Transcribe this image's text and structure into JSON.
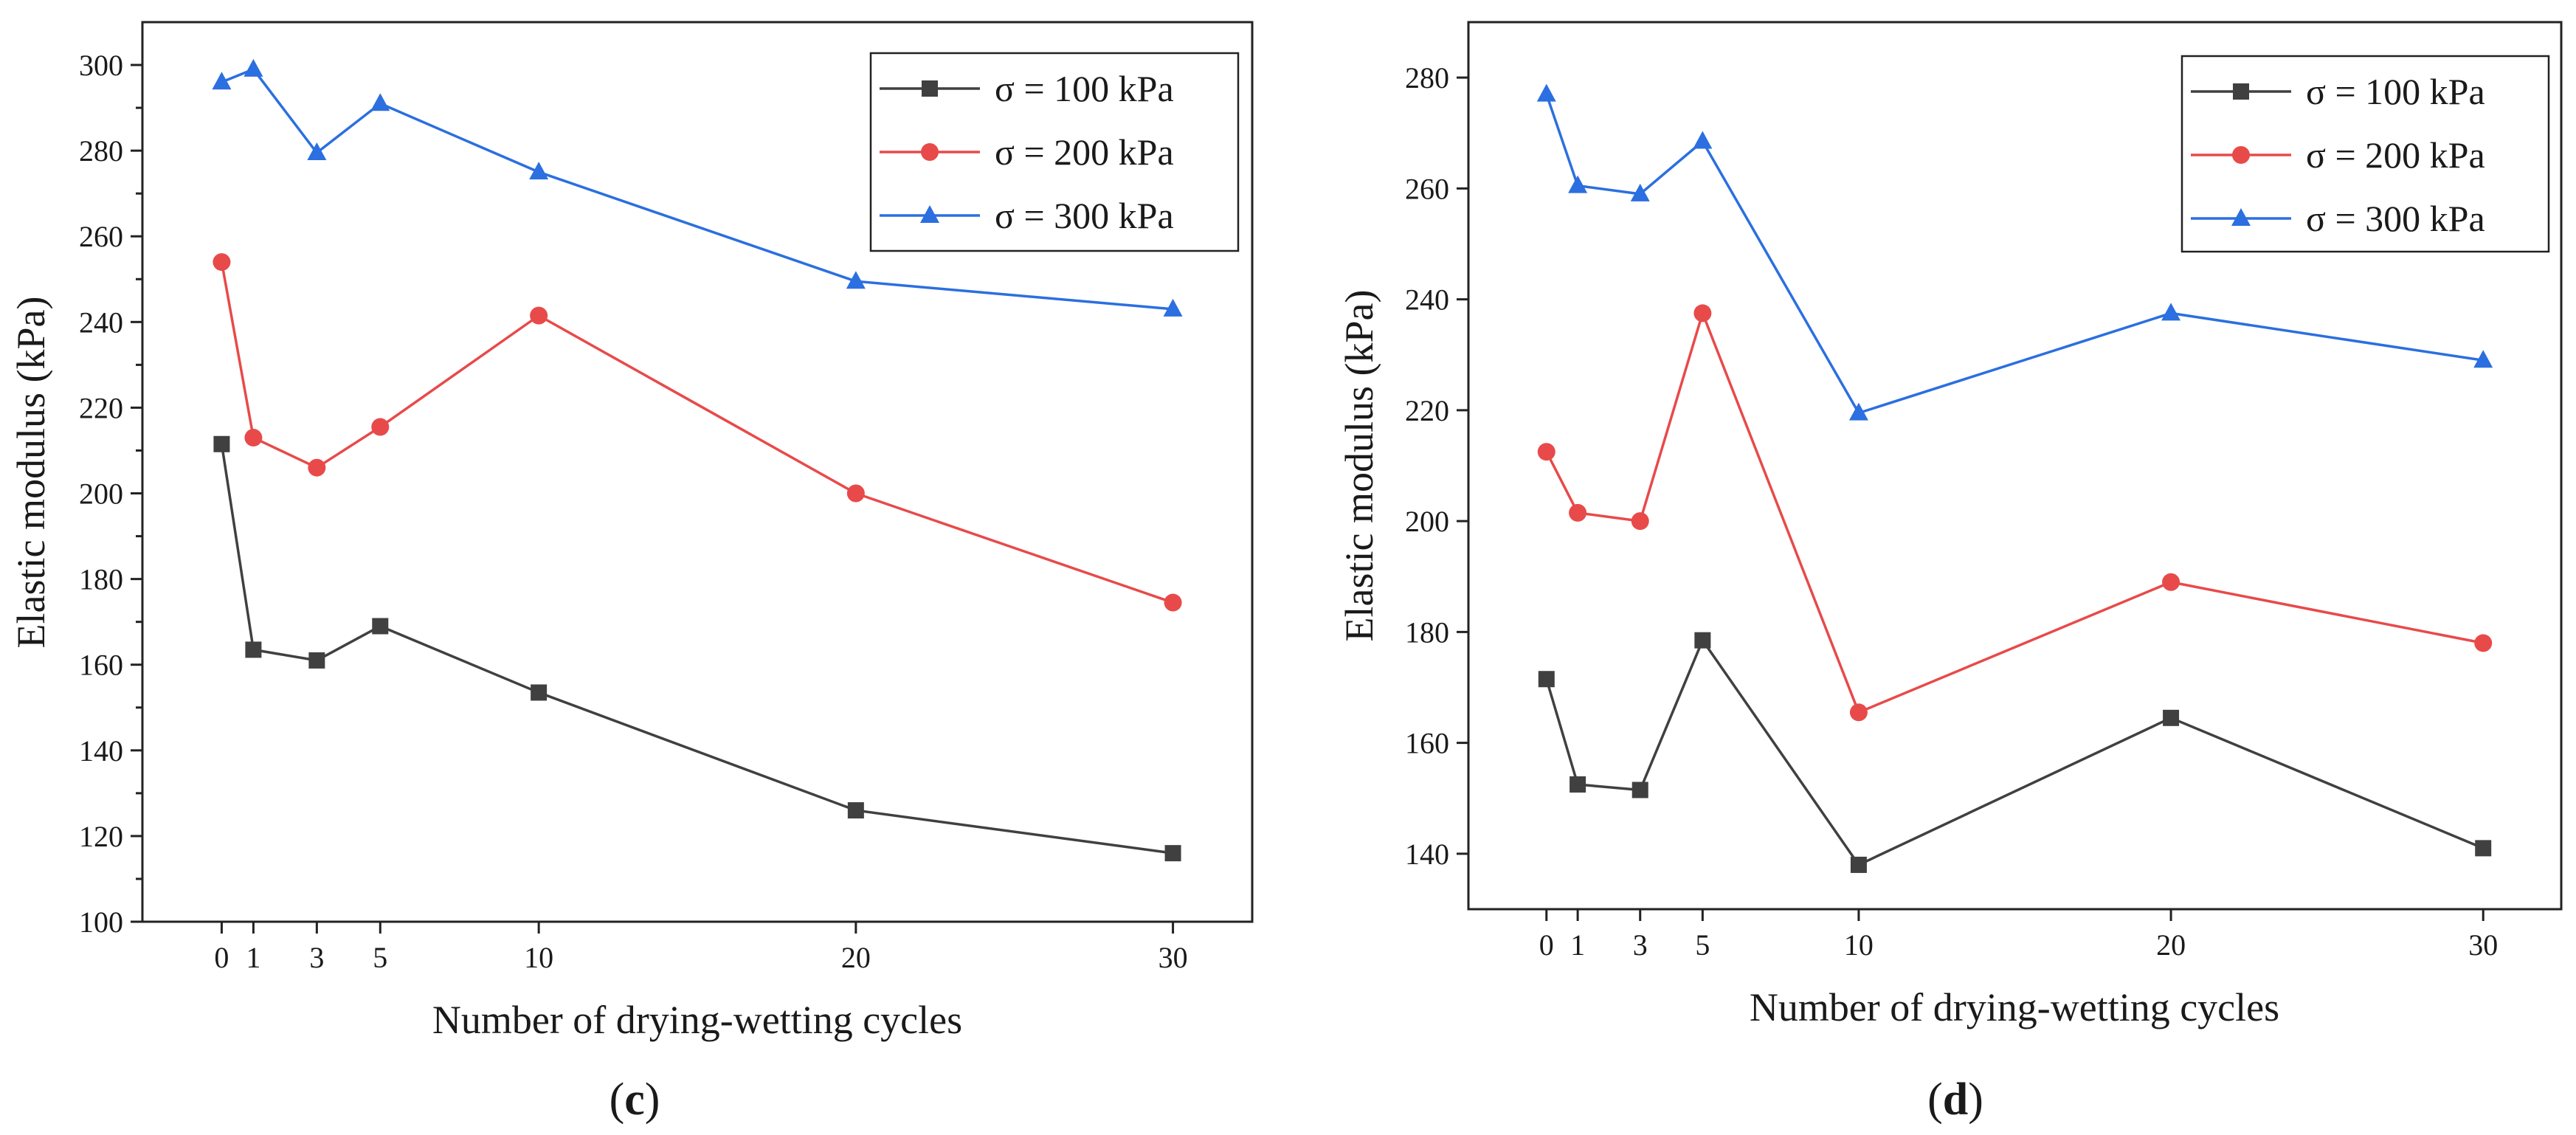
{
  "chart_data": [
    {
      "type": "line",
      "panel": "c",
      "title": "",
      "xlabel": "Number of drying-wetting cycles",
      "ylabel": "Elastic modulus (kPa)",
      "x": [
        0,
        1,
        3,
        5,
        10,
        20,
        30
      ],
      "x_ticks": [
        0,
        1,
        3,
        5,
        10,
        20,
        30
      ],
      "xlim": [
        -2.5,
        32.5
      ],
      "ylim": [
        100,
        310
      ],
      "y_ticks": [
        100,
        120,
        140,
        160,
        180,
        200,
        220,
        240,
        260,
        280,
        300
      ],
      "legend_position": "top-right",
      "grid": false,
      "series": [
        {
          "name": "σ = 100 kPa",
          "color": "#404040",
          "marker": "square",
          "values": [
            211.5,
            163.5,
            161,
            169,
            153.5,
            126,
            116
          ]
        },
        {
          "name": "σ = 200 kPa",
          "color": "#e84a4a",
          "marker": "circle",
          "values": [
            254,
            213,
            206,
            215.5,
            241.5,
            200,
            174.5
          ]
        },
        {
          "name": "σ = 300 kPa",
          "color": "#2b6fe0",
          "marker": "triangle",
          "values": [
            296,
            299,
            279.5,
            291,
            275,
            249.5,
            243
          ]
        }
      ]
    },
    {
      "type": "line",
      "panel": "d",
      "title": "",
      "xlabel": "Number of drying-wetting cycles",
      "ylabel": "Elastic modulus (kPa)",
      "x": [
        0,
        1,
        3,
        5,
        10,
        20,
        30
      ],
      "x_ticks": [
        0,
        1,
        3,
        5,
        10,
        20,
        30
      ],
      "xlim": [
        -2.5,
        32.5
      ],
      "ylim": [
        130,
        290
      ],
      "y_ticks": [
        140,
        160,
        180,
        200,
        220,
        240,
        260,
        280
      ],
      "legend_position": "top-right",
      "grid": false,
      "series": [
        {
          "name": "σ = 100 kPa",
          "color": "#404040",
          "marker": "square",
          "values": [
            171.5,
            152.5,
            151.5,
            178.5,
            138,
            164.5,
            141
          ]
        },
        {
          "name": "σ = 200 kPa",
          "color": "#e84a4a",
          "marker": "circle",
          "values": [
            212.5,
            201.5,
            200,
            237.5,
            165.5,
            189,
            178
          ]
        },
        {
          "name": "σ = 300 kPa",
          "color": "#2b6fe0",
          "marker": "triangle",
          "values": [
            277,
            260.5,
            259,
            268.5,
            219.5,
            237.5,
            229
          ]
        }
      ]
    }
  ],
  "panel_labels": [
    {
      "open": "(",
      "letter": "c",
      "close": ")"
    },
    {
      "open": "(",
      "letter": "d",
      "close": ")"
    }
  ]
}
